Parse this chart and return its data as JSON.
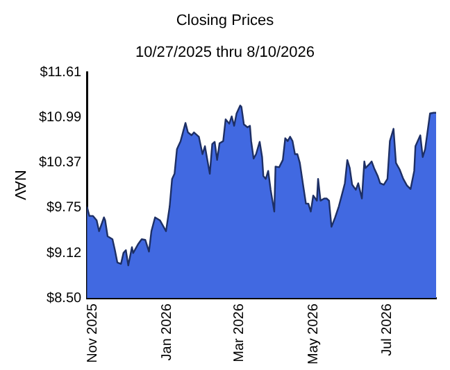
{
  "chart_data": {
    "type": "area",
    "title": "Closing Prices",
    "subtitle": "10/27/2025 thru 8/10/2026",
    "ylabel": "NAV",
    "x": [
      "2025-10-27",
      "2025-10-29",
      "2025-11-01",
      "2025-11-04",
      "2025-11-06",
      "2025-11-10",
      "2025-11-11",
      "2025-11-13",
      "2025-11-17",
      "2025-11-19",
      "2025-11-21",
      "2025-11-24",
      "2025-11-26",
      "2025-11-28",
      "2025-11-30",
      "2025-12-03",
      "2025-12-04",
      "2025-12-08",
      "2025-12-11",
      "2025-12-14",
      "2025-12-17",
      "2025-12-19",
      "2025-12-22",
      "2025-12-26",
      "2025-12-31",
      "2026-01-03",
      "2026-01-05",
      "2026-01-07",
      "2026-01-09",
      "2026-01-12",
      "2026-01-16",
      "2026-01-18",
      "2026-01-21",
      "2026-01-23",
      "2026-01-27",
      "2026-01-30",
      "2026-02-01",
      "2026-02-03",
      "2026-02-05",
      "2026-02-07",
      "2026-02-09",
      "2026-02-11",
      "2026-02-13",
      "2026-02-16",
      "2026-02-18",
      "2026-02-21",
      "2026-02-23",
      "2026-02-25",
      "2026-02-27",
      "2026-03-02",
      "2026-03-03",
      "2026-03-05",
      "2026-03-08",
      "2026-03-10",
      "2026-03-11",
      "2026-03-13",
      "2026-03-15",
      "2026-03-18",
      "2026-03-20",
      "2026-03-21",
      "2026-03-23",
      "2026-03-25",
      "2026-03-27",
      "2026-03-30",
      "2026-03-31",
      "2026-04-03",
      "2026-04-06",
      "2026-04-08",
      "2026-04-10",
      "2026-04-12",
      "2026-04-14",
      "2026-04-16",
      "2026-04-18",
      "2026-04-20",
      "2026-04-23",
      "2026-04-25",
      "2026-04-27",
      "2026-04-29",
      "2026-05-01",
      "2026-05-04",
      "2026-05-05",
      "2026-05-07",
      "2026-05-10",
      "2026-05-12",
      "2026-05-14",
      "2026-05-16",
      "2026-05-19",
      "2026-05-22",
      "2026-05-25",
      "2026-05-27",
      "2026-05-29",
      "2026-05-31",
      "2026-06-02",
      "2026-06-05",
      "2026-06-07",
      "2026-06-10",
      "2026-06-12",
      "2026-06-13",
      "2026-06-16",
      "2026-06-18",
      "2026-06-20",
      "2026-06-23",
      "2026-06-25",
      "2026-06-28",
      "2026-07-01",
      "2026-07-03",
      "2026-07-06",
      "2026-07-08",
      "2026-07-11",
      "2026-07-14",
      "2026-07-17",
      "2026-07-20",
      "2026-07-23",
      "2026-07-24",
      "2026-07-28",
      "2026-07-30",
      "2026-08-01",
      "2026-08-05",
      "2026-08-08",
      "2026-08-10"
    ],
    "series": [
      {
        "color": "#4169e1",
        "values": [
          9.76,
          9.63,
          9.63,
          9.57,
          9.42,
          9.61,
          9.57,
          9.35,
          9.31,
          9.16,
          8.99,
          8.97,
          9.12,
          9.16,
          8.95,
          9.2,
          9.12,
          9.24,
          9.31,
          9.3,
          9.14,
          9.42,
          9.61,
          9.57,
          9.42,
          9.76,
          10.14,
          10.21,
          10.55,
          10.66,
          10.91,
          10.78,
          10.74,
          10.78,
          10.72,
          10.48,
          10.59,
          10.4,
          10.21,
          10.62,
          10.65,
          10.4,
          10.63,
          10.66,
          10.96,
          10.9,
          11.0,
          10.87,
          11.04,
          11.15,
          11.13,
          10.89,
          10.85,
          10.87,
          10.66,
          10.42,
          10.48,
          10.65,
          10.44,
          10.18,
          10.14,
          10.25,
          9.99,
          9.69,
          10.31,
          10.3,
          10.4,
          10.7,
          10.66,
          10.72,
          10.66,
          10.48,
          10.48,
          10.36,
          10.02,
          9.8,
          9.8,
          9.69,
          9.91,
          9.84,
          10.14,
          9.84,
          9.87,
          9.87,
          9.84,
          9.48,
          9.61,
          9.76,
          9.95,
          10.08,
          10.4,
          10.29,
          10.06,
          9.99,
          10.08,
          9.87,
          10.38,
          10.29,
          10.34,
          10.38,
          10.29,
          10.18,
          10.08,
          10.06,
          10.14,
          10.66,
          10.83,
          10.36,
          10.27,
          10.14,
          10.05,
          10.0,
          10.25,
          10.59,
          10.74,
          10.44,
          10.55,
          11.04,
          11.05,
          11.05
        ]
      }
    ],
    "xlim": [
      "2025-10-27",
      "2026-08-10"
    ],
    "xticks": [
      {
        "value": "2025-11-01",
        "label": "Nov 2025"
      },
      {
        "value": "2026-01-01",
        "label": "Jan 2026"
      },
      {
        "value": "2026-03-01",
        "label": "Mar 2026"
      },
      {
        "value": "2026-05-01",
        "label": "May 2026"
      },
      {
        "value": "2026-07-01",
        "label": "Jul 2026"
      }
    ],
    "ylim": [
      8.5,
      11.61
    ],
    "yticks": [
      {
        "value": 8.5,
        "label": "$8.50"
      },
      {
        "value": 9.12,
        "label": "$9.12"
      },
      {
        "value": 9.75,
        "label": "$9.75"
      },
      {
        "value": 10.37,
        "label": "$10.37"
      },
      {
        "value": 10.99,
        "label": "$10.99"
      },
      {
        "value": 11.61,
        "label": "$11.61"
      }
    ],
    "grid": false,
    "legend": false,
    "marker": "none",
    "line_style": "solid"
  }
}
